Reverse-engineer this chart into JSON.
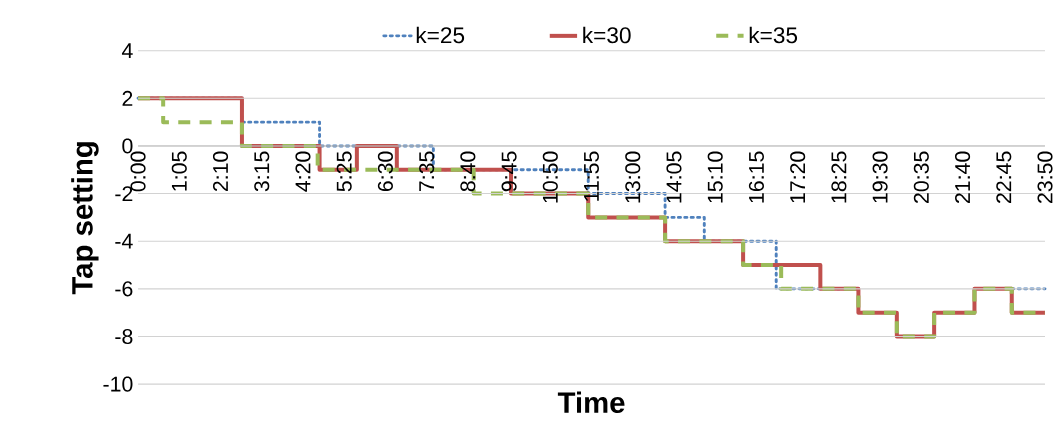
{
  "chart_data": {
    "type": "step",
    "xlabel": "Time",
    "ylabel": "Tap setting",
    "xlim": [
      0,
      23.8333
    ],
    "ylim": [
      -10,
      4
    ],
    "yticks": [
      -10,
      -8,
      -6,
      -4,
      -2,
      0,
      2,
      4
    ],
    "xticks": [
      {
        "value": 0,
        "label": "0:00"
      },
      {
        "value": 1.0833,
        "label": "1:05"
      },
      {
        "value": 2.1667,
        "label": "2:10"
      },
      {
        "value": 3.25,
        "label": "3:15"
      },
      {
        "value": 4.3333,
        "label": "4:20"
      },
      {
        "value": 5.4167,
        "label": "5:25"
      },
      {
        "value": 6.5,
        "label": "6:30"
      },
      {
        "value": 7.5833,
        "label": "7:35"
      },
      {
        "value": 8.6667,
        "label": "8:40"
      },
      {
        "value": 9.75,
        "label": "9:45"
      },
      {
        "value": 10.8333,
        "label": "10:50"
      },
      {
        "value": 11.9167,
        "label": "11:55"
      },
      {
        "value": 13,
        "label": "13:00"
      },
      {
        "value": 14.0833,
        "label": "14:05"
      },
      {
        "value": 15.1667,
        "label": "15:10"
      },
      {
        "value": 16.25,
        "label": "16:15"
      },
      {
        "value": 17.3333,
        "label": "17:20"
      },
      {
        "value": 18.4167,
        "label": "18:25"
      },
      {
        "value": 19.5,
        "label": "19:30"
      },
      {
        "value": 20.5833,
        "label": "20:35"
      },
      {
        "value": 21.6667,
        "label": "21:40"
      },
      {
        "value": 22.75,
        "label": "22:45"
      },
      {
        "value": 23.8333,
        "label": "23:50"
      }
    ],
    "grid": "y",
    "legend": "top",
    "series": [
      {
        "name": "k=25",
        "color": "#4f81bd",
        "line_style": "dotted",
        "x": [
          0,
          2.73,
          4.77,
          7.76,
          11.83,
          13.85,
          14.88,
          16.77,
          18.93,
          19.94,
          20.92,
          21.98,
          22.96,
          23.8333
        ],
        "values": [
          2,
          1,
          0,
          -1,
          -2,
          -3,
          -4,
          -6,
          null,
          null,
          null,
          null,
          -6,
          -6
        ]
      },
      {
        "name": "k=30",
        "color": "#c0504d",
        "line_style": "solid",
        "x": [
          0,
          2.73,
          4.77,
          5.75,
          6.8,
          9.8,
          11.83,
          13.85,
          15.9,
          17.93,
          18.93,
          19.94,
          20.92,
          21.98,
          22.96,
          23.8333
        ],
        "values": [
          2,
          0,
          -1,
          0,
          -1,
          -2,
          -3,
          -4,
          -5,
          -6,
          -7,
          -8,
          -7,
          -6,
          -7,
          -7
        ]
      },
      {
        "name": "k=35",
        "color": "#9bbb59",
        "line_style": "dashed",
        "x": [
          0,
          0.66,
          2.73,
          4.72,
          8.82,
          11.83,
          13.85,
          15.9,
          16.9,
          18.93,
          19.94,
          20.92,
          21.98,
          22.96,
          23.8333
        ],
        "values": [
          2,
          1,
          0,
          -1,
          -2,
          -3,
          -4,
          -5,
          -6,
          -7,
          -8,
          -7,
          -6,
          -7,
          -7
        ]
      }
    ]
  }
}
